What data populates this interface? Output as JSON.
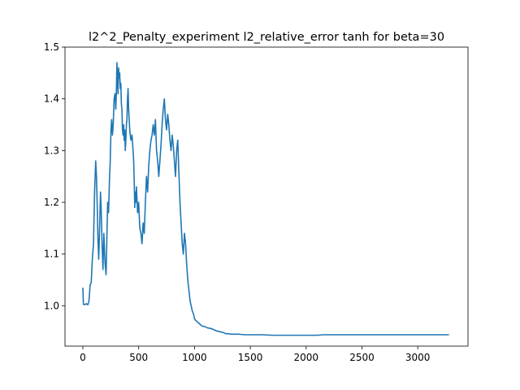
{
  "chart_data": {
    "type": "line",
    "title": "l2^2_Penalty_experiment l2_relative_error tanh for beta=30",
    "xlabel": "",
    "ylabel": "",
    "xlim": [
      -160,
      3450
    ],
    "ylim": [
      0.922,
      1.5
    ],
    "xticks": [
      0,
      500,
      1000,
      1500,
      2000,
      2500,
      3000
    ],
    "yticks": [
      1.0,
      1.1,
      1.2,
      1.3,
      1.4,
      1.5
    ],
    "xtick_labels": [
      "0",
      "500",
      "1000",
      "1500",
      "2000",
      "2500",
      "3000"
    ],
    "ytick_labels": [
      "1.0",
      "1.1",
      "1.2",
      "1.3",
      "1.4",
      "1.5"
    ],
    "grid": false,
    "legend": "none",
    "series": [
      {
        "color": "#1f77b4",
        "x": [
          0,
          5,
          15,
          30,
          45,
          55,
          65,
          75,
          85,
          95,
          105,
          115,
          122,
          128,
          135,
          142,
          150,
          158,
          165,
          172,
          180,
          188,
          195,
          200,
          208,
          215,
          222,
          230,
          238,
          245,
          252,
          258,
          265,
          272,
          280,
          288,
          295,
          300,
          305,
          310,
          315,
          320,
          325,
          330,
          335,
          340,
          345,
          350,
          355,
          360,
          365,
          370,
          375,
          380,
          385,
          390,
          395,
          400,
          405,
          410,
          420,
          430,
          440,
          450,
          455,
          460,
          465,
          470,
          475,
          480,
          490,
          500,
          510,
          520,
          530,
          540,
          550,
          560,
          570,
          580,
          590,
          600,
          610,
          620,
          630,
          640,
          650,
          660,
          670,
          680,
          690,
          700,
          710,
          720,
          730,
          740,
          750,
          760,
          770,
          780,
          790,
          800,
          810,
          820,
          830,
          840,
          850,
          860,
          870,
          880,
          890,
          900,
          910,
          920,
          930,
          940,
          950,
          960,
          970,
          980,
          990,
          1000,
          1010,
          1020,
          1030,
          1040,
          1050,
          1060,
          1070,
          1080,
          1090,
          1100,
          1110,
          1120,
          1130,
          1140,
          1150,
          1160,
          1170,
          1180,
          1190,
          1200,
          1210,
          1220,
          1230,
          1240,
          1250,
          1260,
          1270,
          1280,
          1300,
          1330,
          1360,
          1400,
          1450,
          1500,
          1550,
          1600,
          1700,
          1800,
          1900,
          2000,
          2100,
          2150,
          2200,
          2300,
          2400,
          2500,
          2600,
          2700,
          2800,
          2900,
          3000,
          3100,
          3200,
          3280
        ],
        "values": [
          1.035,
          1.003,
          1.002,
          1.004,
          1.002,
          1.01,
          1.04,
          1.045,
          1.09,
          1.12,
          1.22,
          1.28,
          1.25,
          1.2,
          1.13,
          1.09,
          1.15,
          1.22,
          1.18,
          1.12,
          1.07,
          1.14,
          1.1,
          1.08,
          1.06,
          1.13,
          1.2,
          1.18,
          1.24,
          1.28,
          1.34,
          1.36,
          1.33,
          1.35,
          1.4,
          1.41,
          1.38,
          1.41,
          1.47,
          1.44,
          1.41,
          1.46,
          1.44,
          1.45,
          1.42,
          1.43,
          1.39,
          1.38,
          1.34,
          1.33,
          1.35,
          1.32,
          1.34,
          1.3,
          1.32,
          1.35,
          1.36,
          1.4,
          1.42,
          1.38,
          1.34,
          1.32,
          1.33,
          1.3,
          1.28,
          1.24,
          1.19,
          1.22,
          1.2,
          1.23,
          1.18,
          1.2,
          1.15,
          1.14,
          1.12,
          1.16,
          1.14,
          1.2,
          1.25,
          1.22,
          1.27,
          1.3,
          1.32,
          1.33,
          1.35,
          1.33,
          1.36,
          1.3,
          1.28,
          1.25,
          1.28,
          1.31,
          1.35,
          1.38,
          1.4,
          1.36,
          1.34,
          1.37,
          1.35,
          1.32,
          1.3,
          1.33,
          1.31,
          1.28,
          1.25,
          1.3,
          1.32,
          1.26,
          1.2,
          1.16,
          1.12,
          1.1,
          1.14,
          1.12,
          1.08,
          1.05,
          1.03,
          1.01,
          1.0,
          0.99,
          0.985,
          0.975,
          0.972,
          0.97,
          0.968,
          0.966,
          0.964,
          0.962,
          0.961,
          0.96,
          0.96,
          0.959,
          0.958,
          0.957,
          0.957,
          0.956,
          0.956,
          0.955,
          0.954,
          0.953,
          0.952,
          0.951,
          0.951,
          0.95,
          0.95,
          0.949,
          0.949,
          0.948,
          0.947,
          0.946,
          0.946,
          0.945,
          0.945,
          0.945,
          0.944,
          0.944,
          0.944,
          0.944,
          0.943,
          0.943,
          0.943,
          0.943,
          0.943,
          0.944,
          0.944,
          0.944,
          0.944,
          0.944,
          0.944,
          0.944,
          0.944,
          0.944,
          0.944,
          0.944,
          0.944,
          0.944
        ]
      }
    ]
  }
}
